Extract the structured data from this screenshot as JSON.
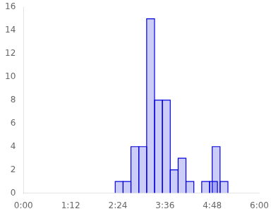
{
  "chart_data": {
    "type": "bar",
    "x": [
      140,
      152,
      164,
      176,
      188,
      200,
      212,
      224,
      236,
      248,
      272,
      284,
      288,
      300
    ],
    "values": [
      1,
      1,
      4,
      4,
      15,
      8,
      8,
      2,
      3,
      1,
      1,
      1,
      4,
      1
    ],
    "width": 12,
    "color": "#0000dd",
    "xlim": [
      0,
      360
    ],
    "xticks": [
      {
        "value": 0,
        "label": "0:00"
      },
      {
        "value": 72,
        "label": "1:12"
      },
      {
        "value": 144,
        "label": "2:24"
      },
      {
        "value": 216,
        "label": "3:36"
      },
      {
        "value": 288,
        "label": "4:48"
      },
      {
        "value": 360,
        "label": "6:00"
      }
    ],
    "ylim": [
      0,
      16
    ],
    "yticks": [
      0,
      2,
      4,
      6,
      8,
      10,
      12,
      14,
      16
    ],
    "grid": false
  }
}
